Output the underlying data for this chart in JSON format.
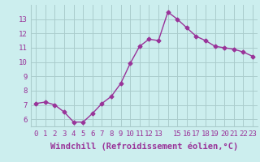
{
  "x": [
    0,
    1,
    2,
    3,
    4,
    5,
    6,
    7,
    8,
    9,
    10,
    11,
    12,
    13,
    14,
    15,
    16,
    17,
    18,
    19,
    20,
    21,
    22,
    23
  ],
  "y": [
    7.1,
    7.2,
    7.0,
    6.5,
    5.8,
    5.8,
    6.4,
    7.1,
    7.6,
    8.5,
    9.9,
    11.1,
    11.6,
    11.5,
    13.5,
    13.0,
    12.4,
    11.8,
    11.5,
    11.1,
    11.0,
    10.9,
    10.7,
    10.4
  ],
  "line_color": "#993399",
  "marker": "D",
  "marker_size": 2.5,
  "bg_color": "#cceeee",
  "grid_color": "#aacccc",
  "text_color": "#993399",
  "xlabel": "Windchill (Refroidissement éolien,°C)",
  "ylim": [
    5.5,
    14.0
  ],
  "xlim": [
    -0.5,
    23.5
  ],
  "yticks": [
    6,
    7,
    8,
    9,
    10,
    11,
    12,
    13
  ],
  "xticks": [
    0,
    1,
    2,
    3,
    4,
    5,
    6,
    7,
    8,
    9,
    10,
    11,
    12,
    13,
    15,
    16,
    17,
    18,
    19,
    20,
    21,
    22,
    23
  ],
  "xtick_labels": [
    "0",
    "1",
    "2",
    "3",
    "4",
    "5",
    "6",
    "7",
    "8",
    "9",
    "10",
    "11",
    "12",
    "13",
    "15",
    "16",
    "17",
    "18",
    "19",
    "20",
    "21",
    "22",
    "23"
  ],
  "font_family": "monospace",
  "xlabel_fontsize": 7.5,
  "tick_fontsize": 6.5,
  "linewidth": 1.0
}
